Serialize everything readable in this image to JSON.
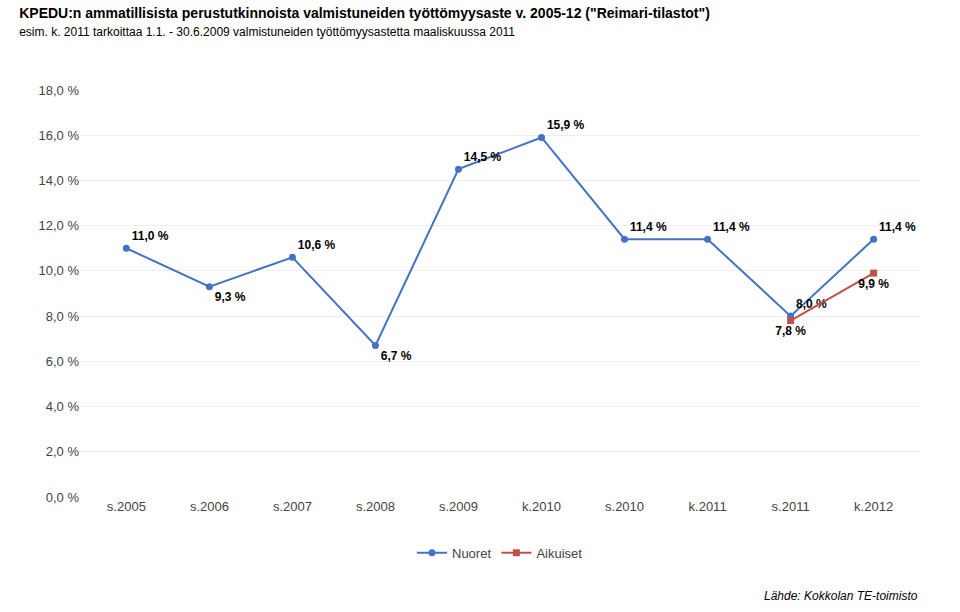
{
  "chart_data": {
    "type": "line",
    "title": "KPEDU:n ammatillisista perustutkinnoista valmistuneiden työttömyysaste v. 2005-12 (\"Reimari-tilastot\")",
    "subtitle": "esim. k. 2011 tarkoittaa 1.1. - 30.6.2009 valmistuneiden työttömyysastetta maaliskuussa 2011",
    "categories": [
      "s.2005",
      "s.2006",
      "s.2007",
      "s.2008",
      "s.2009",
      "k.2010",
      "s.2010",
      "k.2011",
      "s.2011",
      "k.2012"
    ],
    "series": [
      {
        "name": "Nuoret",
        "color": "#4472C4",
        "marker": "circle",
        "values": [
          11.0,
          9.3,
          10.6,
          6.7,
          14.5,
          15.9,
          11.4,
          11.4,
          8.0,
          11.4
        ],
        "value_labels": [
          "11,0 %",
          "9,3 %",
          "10,6 %",
          "6,7 %",
          "14,5 %",
          "15,9 %",
          "11,4 %",
          "11,4 %",
          "8,0 %",
          "11,4 %"
        ]
      },
      {
        "name": "Aikuiset",
        "color": "#C0504D",
        "marker": "square",
        "values": [
          null,
          null,
          null,
          null,
          null,
          null,
          null,
          null,
          7.8,
          9.9
        ],
        "value_labels": [
          null,
          null,
          null,
          null,
          null,
          null,
          null,
          null,
          "7,8 %",
          "9,9 %"
        ]
      }
    ],
    "ylim": [
      0,
      18
    ],
    "yticks": [
      {
        "value": 0.0,
        "label": "0,0 %"
      },
      {
        "value": 2.0,
        "label": "2,0 %"
      },
      {
        "value": 4.0,
        "label": "4,0 %"
      },
      {
        "value": 6.0,
        "label": "6,0 %"
      },
      {
        "value": 8.0,
        "label": "8,0 %"
      },
      {
        "value": 10.0,
        "label": "10,0 %"
      },
      {
        "value": 12.0,
        "label": "12,0 %"
      },
      {
        "value": 14.0,
        "label": "14,0 %"
      },
      {
        "value": 16.0,
        "label": "16,0 %"
      },
      {
        "value": 18.0,
        "label": "18,0 %"
      }
    ],
    "grid": true,
    "data_labels": true,
    "legend": "bottom",
    "annotations": [
      "Lähde: Kokkolan TE-toimisto"
    ]
  }
}
